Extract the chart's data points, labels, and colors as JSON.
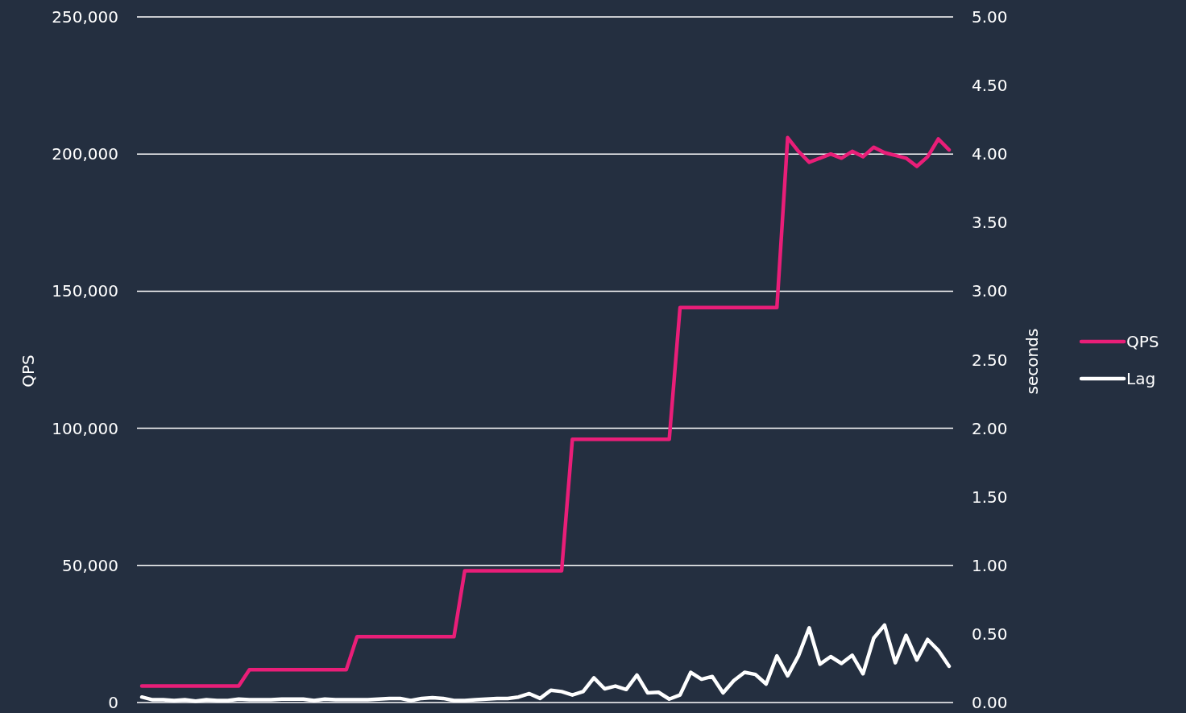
{
  "chart_data": {
    "type": "line",
    "xlabel": null,
    "ylabel": "QPS",
    "y2label": "seconds",
    "categories": [
      null,
      null,
      null,
      null,
      null,
      null,
      null,
      null,
      null,
      null,
      null,
      null,
      null,
      null,
      null,
      null,
      null,
      null,
      null,
      null,
      null,
      null,
      null,
      null,
      null,
      null,
      null,
      null,
      null,
      null,
      null,
      null,
      null,
      null,
      null,
      null,
      null,
      null,
      null,
      null,
      null,
      null,
      null,
      null,
      null,
      null,
      null,
      null,
      null,
      null,
      null,
      null,
      null,
      null,
      null,
      null,
      null,
      null,
      null,
      null,
      null,
      null,
      null,
      null,
      null,
      null,
      null,
      null,
      null,
      null,
      null,
      null,
      null,
      null,
      null,
      null
    ],
    "series": [
      {
        "name": "QPS",
        "color": "#e91e78",
        "values": [
          6000,
          6000,
          6000,
          6000,
          6000,
          6000,
          6000,
          6000,
          6000,
          6000,
          12000,
          12000,
          12000,
          12000,
          12000,
          12000,
          12000,
          12000,
          12000,
          12000,
          24000,
          24000,
          24000,
          24000,
          24000,
          24000,
          24000,
          24000,
          24000,
          24000,
          48000,
          48000,
          48000,
          48000,
          48000,
          48000,
          48000,
          48000,
          48000,
          48000,
          96000,
          96000,
          96000,
          96000,
          96000,
          96000,
          96000,
          96000,
          96000,
          96000,
          144000,
          144000,
          144000,
          144000,
          144000,
          144000,
          144000,
          144000,
          144000,
          144000,
          206000,
          201000,
          197000,
          198500,
          200000,
          198500,
          201000,
          199000,
          202500,
          200500,
          199500,
          198500,
          195500,
          199000,
          205500,
          201500
        ]
      },
      {
        "name": "Lag",
        "color": "#ffffff",
        "axis": "y2",
        "values": [
          0.04,
          0.02,
          0.02,
          0.015,
          0.02,
          0.01,
          0.02,
          0.015,
          0.015,
          0.025,
          0.02,
          0.02,
          0.02,
          0.025,
          0.025,
          0.025,
          0.015,
          0.025,
          0.02,
          0.02,
          0.02,
          0.02,
          0.025,
          0.03,
          0.03,
          0.015,
          0.03,
          0.035,
          0.03,
          0.015,
          0.015,
          0.02,
          0.025,
          0.03,
          0.03,
          0.04,
          0.065,
          0.03,
          0.09,
          0.08,
          0.055,
          0.08,
          0.18,
          0.1,
          0.12,
          0.095,
          0.2,
          0.07,
          0.075,
          0.025,
          0.055,
          0.22,
          0.17,
          0.19,
          0.07,
          0.16,
          0.22,
          0.205,
          0.135,
          0.34,
          0.195,
          0.34,
          0.545,
          0.28,
          0.335,
          0.285,
          0.345,
          0.21,
          0.47,
          0.565,
          0.29,
          0.49,
          0.31,
          0.46,
          0.38,
          0.265
        ]
      }
    ],
    "ylim": [
      0,
      250000
    ],
    "yticks": [
      {
        "value": 0,
        "label": "0"
      },
      {
        "value": 50000,
        "label": "50,000"
      },
      {
        "value": 100000,
        "label": "100,000"
      },
      {
        "value": 150000,
        "label": "150,000"
      },
      {
        "value": 200000,
        "label": "200,000"
      },
      {
        "value": 250000,
        "label": "250,000"
      }
    ],
    "y2lim": [
      0,
      5
    ],
    "y2ticks": [
      {
        "value": 0,
        "label": "0.00"
      },
      {
        "value": 0.5,
        "label": "0.50"
      },
      {
        "value": 1,
        "label": "1.00"
      },
      {
        "value": 1.5,
        "label": "1.50"
      },
      {
        "value": 2,
        "label": "2.00"
      },
      {
        "value": 2.5,
        "label": "2.50"
      },
      {
        "value": 3,
        "label": "3.00"
      },
      {
        "value": 3.5,
        "label": "3.50"
      },
      {
        "value": 4,
        "label": "4.00"
      },
      {
        "value": 4.5,
        "label": "4.50"
      },
      {
        "value": 5,
        "label": "5.00"
      }
    ],
    "grid": "y",
    "legend": "right",
    "marker": "none",
    "line_style": "solid"
  }
}
